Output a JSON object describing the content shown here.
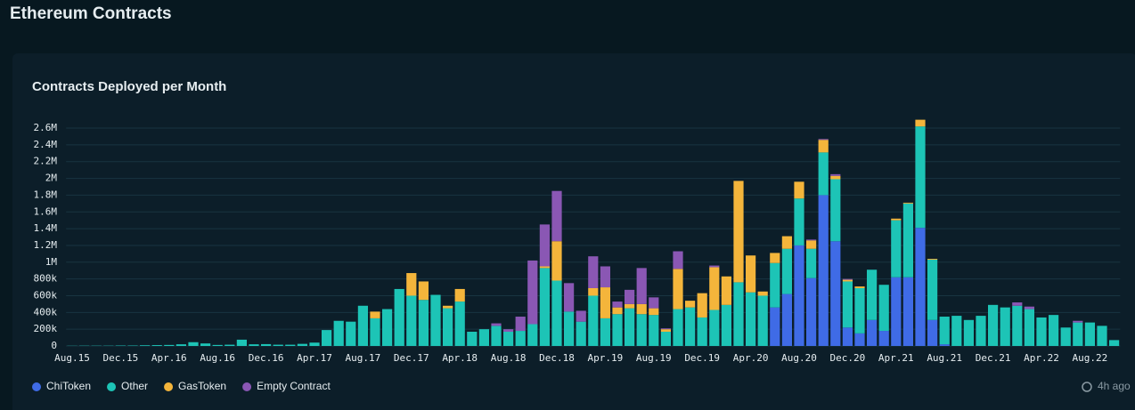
{
  "header": {
    "title": "Ethereum Contracts"
  },
  "updated": "4h ago",
  "chart_data": {
    "type": "stacked_bar",
    "title": "Contracts Deployed per Month",
    "categories": [
      "Aug.15",
      null,
      null,
      null,
      "Dec.15",
      null,
      null,
      null,
      "Apr.16",
      null,
      null,
      null,
      "Aug.16",
      null,
      null,
      null,
      "Dec.16",
      null,
      null,
      null,
      "Apr.17",
      null,
      null,
      null,
      "Aug.17",
      null,
      null,
      null,
      "Dec.17",
      null,
      null,
      null,
      "Apr.18",
      null,
      null,
      null,
      "Aug.18",
      null,
      null,
      null,
      "Dec.18",
      null,
      null,
      null,
      "Apr.19",
      null,
      null,
      null,
      "Aug.19",
      null,
      null,
      null,
      "Dec.19",
      null,
      null,
      null,
      "Apr.20",
      null,
      null,
      null,
      "Aug.20",
      null,
      null,
      null,
      "Dec.20",
      null,
      null,
      null,
      "Apr.21",
      null,
      null,
      null,
      "Aug.21",
      null,
      null,
      null,
      "Dec.21",
      null,
      null,
      null,
      "Apr.22",
      null,
      null,
      null,
      "Aug.22",
      null,
      null
    ],
    "series": [
      {
        "name": "ChiToken",
        "color": "#3f6be6",
        "values": [
          0,
          0,
          0,
          0,
          0,
          0,
          0,
          0,
          0,
          0,
          0,
          0,
          0,
          0,
          0,
          0,
          0,
          0,
          0,
          0,
          0,
          0,
          0,
          0,
          0,
          0,
          0,
          0,
          0,
          0,
          0,
          0,
          0,
          0,
          0,
          0,
          0,
          0,
          0,
          0,
          0,
          0,
          0,
          0,
          0,
          0,
          0,
          0,
          0,
          0,
          0,
          0,
          0,
          0,
          0,
          0,
          0,
          0,
          460000,
          620000,
          1200000,
          810000,
          1800000,
          1250000,
          220000,
          150000,
          310000,
          180000,
          820000,
          820000,
          1410000,
          310000,
          20000,
          0,
          0,
          0,
          0,
          0,
          0,
          0,
          0,
          0,
          0,
          0,
          0,
          0,
          0
        ]
      },
      {
        "name": "Other",
        "color": "#1dc4b6",
        "values": [
          2000,
          3000,
          3000,
          3000,
          5000,
          5000,
          8000,
          10000,
          12000,
          20000,
          45000,
          30000,
          12000,
          15000,
          75000,
          20000,
          22000,
          15000,
          15000,
          25000,
          40000,
          190000,
          300000,
          290000,
          480000,
          330000,
          440000,
          680000,
          600000,
          550000,
          610000,
          450000,
          530000,
          170000,
          200000,
          240000,
          170000,
          180000,
          260000,
          930000,
          780000,
          410000,
          290000,
          600000,
          330000,
          380000,
          450000,
          380000,
          370000,
          170000,
          440000,
          460000,
          340000,
          430000,
          490000,
          760000,
          640000,
          600000,
          530000,
          540000,
          560000,
          350000,
          510000,
          740000,
          550000,
          540000,
          600000,
          550000,
          680000,
          880000,
          1210000,
          720000,
          330000,
          360000,
          310000,
          360000,
          490000,
          460000,
          480000,
          440000,
          340000,
          370000,
          220000,
          280000,
          280000,
          240000,
          70000
        ]
      },
      {
        "name": "GasToken",
        "color": "#f4b53b",
        "values": [
          0,
          0,
          0,
          0,
          0,
          0,
          0,
          0,
          0,
          0,
          0,
          0,
          0,
          0,
          0,
          0,
          0,
          0,
          0,
          0,
          0,
          0,
          0,
          0,
          0,
          80000,
          0,
          0,
          270000,
          220000,
          0,
          30000,
          150000,
          0,
          0,
          0,
          0,
          0,
          0,
          20000,
          470000,
          0,
          0,
          90000,
          370000,
          80000,
          50000,
          120000,
          80000,
          30000,
          480000,
          80000,
          290000,
          510000,
          340000,
          1210000,
          440000,
          50000,
          120000,
          150000,
          200000,
          100000,
          150000,
          40000,
          20000,
          20000,
          0,
          0,
          20000,
          10000,
          80000,
          10000,
          0,
          0,
          0,
          0,
          0,
          0,
          0,
          0,
          0,
          0,
          0,
          0,
          0,
          0,
          0
        ]
      },
      {
        "name": "Empty Contract",
        "color": "#8a57b4",
        "values": [
          0,
          0,
          0,
          0,
          0,
          0,
          0,
          0,
          0,
          0,
          0,
          0,
          0,
          0,
          0,
          0,
          0,
          0,
          0,
          0,
          0,
          0,
          0,
          0,
          0,
          0,
          0,
          0,
          0,
          0,
          0,
          0,
          0,
          0,
          0,
          30000,
          30000,
          170000,
          760000,
          500000,
          600000,
          340000,
          130000,
          380000,
          250000,
          70000,
          170000,
          430000,
          130000,
          10000,
          210000,
          0,
          0,
          20000,
          0,
          0,
          0,
          0,
          0,
          0,
          0,
          10000,
          10000,
          20000,
          10000,
          0,
          0,
          0,
          0,
          0,
          0,
          0,
          0,
          0,
          0,
          0,
          0,
          0,
          40000,
          30000,
          0,
          0,
          0,
          20000,
          0,
          0,
          0
        ]
      }
    ],
    "ylim": [
      0,
      2800000
    ],
    "yticks": [
      0,
      {
        "value": 200000,
        "label": "200k"
      },
      {
        "value": 400000,
        "label": "400k"
      },
      {
        "value": 600000,
        "label": "600k"
      },
      {
        "value": 800000,
        "label": "800k"
      },
      {
        "value": 1000000,
        "label": "1M"
      },
      {
        "value": 1200000,
        "label": "1.2M"
      },
      {
        "value": 1400000,
        "label": "1.4M"
      },
      {
        "value": 1600000,
        "label": "1.6M"
      },
      {
        "value": 1800000,
        "label": "1.8M"
      },
      {
        "value": 2000000,
        "label": "2M"
      },
      {
        "value": 2200000,
        "label": "2.2M"
      },
      {
        "value": 2400000,
        "label": "2.4M"
      },
      {
        "value": 2600000,
        "label": "2.6M"
      }
    ],
    "grid": true
  }
}
